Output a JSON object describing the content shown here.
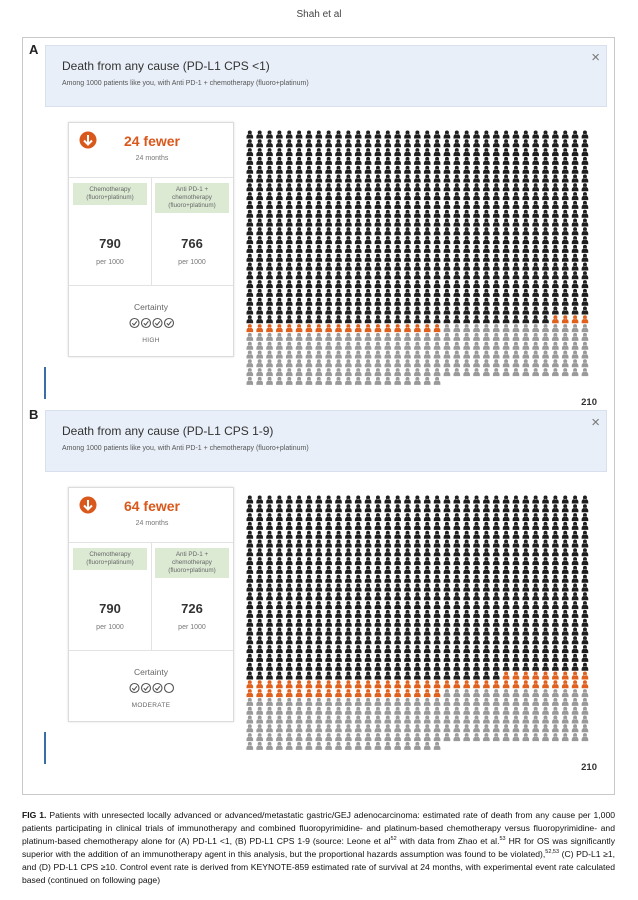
{
  "header": "Shah et al",
  "panels": [
    {
      "label": "A",
      "title": "Death from any cause (PD-L1 CPS <1)",
      "subtitle": "Among 1000 patients like you, with Anti PD-1 + chemotherapy (fluoro+platinum)",
      "effect": {
        "value": 24,
        "label": "24 fewer"
      },
      "timeframe": "24 months",
      "comparator": {
        "name": "Chemotherapy (fluoro+platinum)",
        "value": 790,
        "unit": "per 1000"
      },
      "intervention": {
        "name": "Anti PD-1 + chemotherapy (fluoro+platinum)",
        "value": 766,
        "unit": "per 1000"
      },
      "certainty_label": "Certainty",
      "certainty_level": 4,
      "certainty": "HIGH",
      "remaining": 210
    },
    {
      "label": "B",
      "title": "Death from any cause (PD-L1 CPS 1-9)",
      "subtitle": "Among 1000 patients like you, with Anti PD-1 + chemotherapy (fluoro+platinum)",
      "effect": {
        "value": 64,
        "label": "64 fewer"
      },
      "timeframe": "24 months",
      "comparator": {
        "name": "Chemotherapy (fluoro+platinum)",
        "value": 790,
        "unit": "per 1000"
      },
      "intervention": {
        "name": "Anti PD-1 + chemotherapy (fluoro+platinum)",
        "value": 726,
        "unit": "per 1000"
      },
      "certainty_label": "Certainty",
      "certainty_level": 3,
      "certainty": "MODERATE",
      "remaining": 210
    }
  ],
  "caption": {
    "label": "FIG 1.",
    "segments": [
      {
        "text": " Patients with unresected locally advanced or advanced/metastatic gastric/GEJ adenocarcinoma: estimated rate of death from any cause per 1,000 patients participating in clinical trials of immunotherapy and combined fluoropyrimidine- and platinum-based chemotherapy versus fluoropyrimidine- and platinum-based chemotherapy alone for (A) PD-L1 <1, (B) PD-L1 CPS 1-9 (source: Leone et al"
      },
      {
        "sup": "52"
      },
      {
        "text": " with data from Zhao et al."
      },
      {
        "sup": "53"
      },
      {
        "text": " HR for OS was significantly superior with the addition of an immunotherapy agent in this analysis, but the proportional hazards assumption was found to be violated),"
      },
      {
        "sup": "52,53"
      },
      {
        "text": " (C) PD-L1 ≥1, and (D) PD-L1 CPS ≥10. Control event rate is derived from KEYNOTE-859 estimated rate of survival at 24 months, with experimental event rate calculated based (continued on following page)"
      }
    ]
  }
}
